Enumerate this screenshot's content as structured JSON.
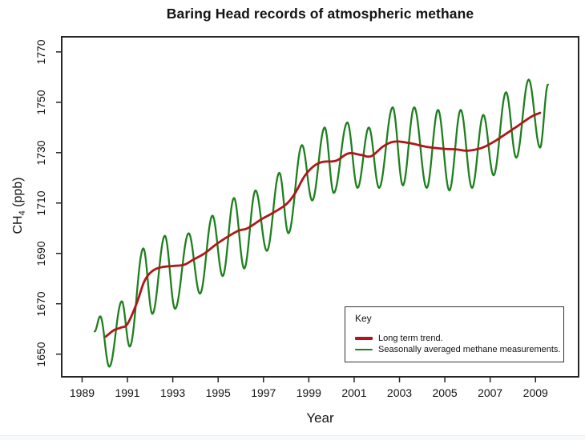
{
  "title": "Baring Head records of atmospheric methane",
  "x_axis": {
    "label": "Year",
    "ticks": [
      "1989",
      "1991",
      "1993",
      "1995",
      "1997",
      "1999",
      "2001",
      "2003",
      "2005",
      "2007",
      "2009"
    ]
  },
  "y_axis": {
    "label_prefix": "CH",
    "label_sub": "4",
    "label_suffix": " (ppb)",
    "ticks": [
      "1650",
      "1670",
      "1690",
      "1710",
      "1730",
      "1750",
      "1770"
    ]
  },
  "legend": {
    "title": "Key",
    "entries": [
      {
        "label": "Long term trend.",
        "color": "#b11519"
      },
      {
        "label": "Seasonally averaged methane measurements.",
        "color": "#1e801e"
      }
    ]
  },
  "colors": {
    "trend": "#b11519",
    "seasonal": "#1e801e",
    "axis": "#262626",
    "text": "#141414"
  },
  "chart_data": {
    "type": "line",
    "title": "Baring Head records of atmospheric methane",
    "xlabel": "Year",
    "ylabel": "CH4 (ppb)",
    "xlim": [
      1988.1,
      2010.9
    ],
    "ylim": [
      1641,
      1776
    ],
    "x_ticks": [
      1989,
      1991,
      1993,
      1995,
      1997,
      1999,
      2001,
      2003,
      2005,
      2007,
      2009
    ],
    "y_ticks": [
      1650,
      1670,
      1690,
      1710,
      1730,
      1750,
      1770
    ],
    "grid": false,
    "legend_position": "inside-bottom-right",
    "series": [
      {
        "name": "Seasonally averaged methane measurements.",
        "color": "#1e801e",
        "line_width": 2.3,
        "interpolation": "seasonal-cosine-through-extremes",
        "points": [
          [
            1989.55,
            1659
          ],
          [
            1989.8,
            1665
          ],
          [
            1990.2,
            1645
          ],
          [
            1990.75,
            1671
          ],
          [
            1991.1,
            1653
          ],
          [
            1991.7,
            1692
          ],
          [
            1992.1,
            1666
          ],
          [
            1992.65,
            1697
          ],
          [
            1993.1,
            1668
          ],
          [
            1993.7,
            1698
          ],
          [
            1994.2,
            1674
          ],
          [
            1994.75,
            1705
          ],
          [
            1995.2,
            1681
          ],
          [
            1995.7,
            1712
          ],
          [
            1996.15,
            1684
          ],
          [
            1996.65,
            1715
          ],
          [
            1997.15,
            1691
          ],
          [
            1997.7,
            1722
          ],
          [
            1998.1,
            1698
          ],
          [
            1998.7,
            1733
          ],
          [
            1999.15,
            1711
          ],
          [
            1999.7,
            1740
          ],
          [
            2000.1,
            1714
          ],
          [
            2000.7,
            1742
          ],
          [
            2001.15,
            1716
          ],
          [
            2001.65,
            1740
          ],
          [
            2002.1,
            1716
          ],
          [
            2002.7,
            1748
          ],
          [
            2003.15,
            1717
          ],
          [
            2003.65,
            1748
          ],
          [
            2004.2,
            1716
          ],
          [
            2004.7,
            1747
          ],
          [
            2005.2,
            1715
          ],
          [
            2005.7,
            1747
          ],
          [
            2006.2,
            1716
          ],
          [
            2006.7,
            1745
          ],
          [
            2007.15,
            1721
          ],
          [
            2007.7,
            1754
          ],
          [
            2008.15,
            1728
          ],
          [
            2008.7,
            1759
          ],
          [
            2009.2,
            1732
          ],
          [
            2009.55,
            1757
          ]
        ]
      },
      {
        "name": "Long term trend.",
        "color": "#b11519",
        "line_width": 2.8,
        "interpolation": "smooth",
        "points": [
          [
            1990.05,
            1657
          ],
          [
            1990.4,
            1659.5
          ],
          [
            1990.7,
            1660.5
          ],
          [
            1991.0,
            1662
          ],
          [
            1991.4,
            1670
          ],
          [
            1991.75,
            1679
          ],
          [
            1992.1,
            1683
          ],
          [
            1992.5,
            1684.5
          ],
          [
            1993.0,
            1685
          ],
          [
            1993.5,
            1685.5
          ],
          [
            1993.9,
            1687.5
          ],
          [
            1994.4,
            1690
          ],
          [
            1994.9,
            1693.5
          ],
          [
            1995.4,
            1696.5
          ],
          [
            1995.9,
            1699
          ],
          [
            1996.3,
            1700
          ],
          [
            1996.9,
            1703.5
          ],
          [
            1997.4,
            1706
          ],
          [
            1998.0,
            1709.5
          ],
          [
            1998.4,
            1714
          ],
          [
            1998.8,
            1720.5
          ],
          [
            1999.2,
            1724.5
          ],
          [
            1999.6,
            1726.3
          ],
          [
            2000.2,
            1726.8
          ],
          [
            2000.75,
            1729.7
          ],
          [
            2001.3,
            1729.1
          ],
          [
            2001.75,
            1728.6
          ],
          [
            2002.3,
            1732.6
          ],
          [
            2002.8,
            1734.4
          ],
          [
            2003.5,
            1733.7
          ],
          [
            2004.2,
            1732.3
          ],
          [
            2005.0,
            1731.5
          ],
          [
            2005.5,
            1731.3
          ],
          [
            2006.0,
            1730.8
          ],
          [
            2006.6,
            1731.8
          ],
          [
            2007.1,
            1734
          ],
          [
            2007.5,
            1736.3
          ],
          [
            2008.2,
            1740.5
          ],
          [
            2008.8,
            1744.2
          ],
          [
            2009.2,
            1745.8
          ]
        ]
      }
    ]
  }
}
